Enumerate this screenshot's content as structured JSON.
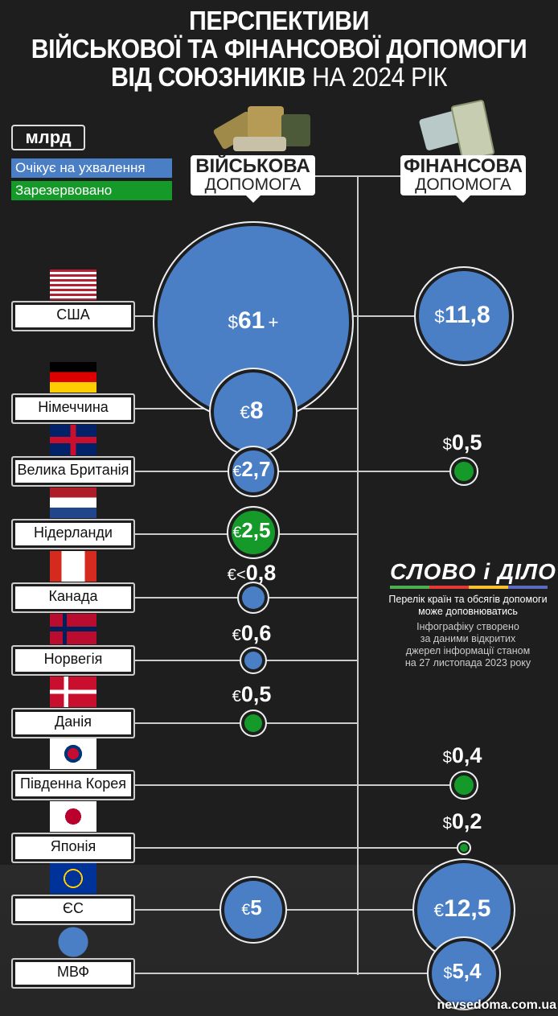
{
  "title": {
    "line1": "ПЕРСПЕКТИВИ",
    "line2": "ВІЙСЬКОВОЇ ТА ФІНАНСОВОЇ ДОПОМОГИ",
    "line3_bold": "ВІД СОЮЗНИКІВ",
    "line3_thin": "НА 2024 РІК"
  },
  "legend": {
    "unit": "млрд",
    "pending": "Очікує на ухвалення",
    "reserved": "Зарезервовано"
  },
  "colors": {
    "pending": "#4a7fc6",
    "reserved": "#159a2a",
    "background": "#1e1e1e"
  },
  "headers": {
    "military_1": "ВІЙСЬКОВА",
    "military_2": "ДОПОМОГА",
    "financial_1": "ФІНАНСОВА",
    "financial_2": "ДОПОМОГА"
  },
  "countries": [
    "США",
    "Німеччина",
    "Велика Британія",
    "Нідерланди",
    "Канада",
    "Норвегія",
    "Данія",
    "Південна Корея",
    "Японія",
    "ЄС",
    "МВФ"
  ],
  "chart_data": {
    "type": "scatter",
    "unit": "млрд",
    "categories": [
      "США",
      "Німеччина",
      "Велика Британія",
      "Нідерланди",
      "Канада",
      "Норвегія",
      "Данія",
      "Південна Корея",
      "Японія",
      "ЄС",
      "МВФ"
    ],
    "series": [
      {
        "name": "ВІЙСЬКОВА ДОПОМОГА",
        "points": [
          {
            "country": "США",
            "value": 61,
            "prefix": "$",
            "label": "61",
            "suffix": "+",
            "status": "pending"
          },
          {
            "country": "Німеччина",
            "value": 8,
            "prefix": "€",
            "label": "8",
            "suffix": "",
            "status": "pending"
          },
          {
            "country": "Велика Британія",
            "value": 2.7,
            "prefix": "€",
            "label": "2,7",
            "suffix": "",
            "status": "pending"
          },
          {
            "country": "Нідерланди",
            "value": 2.5,
            "prefix": "€",
            "label": "2,5",
            "suffix": "",
            "status": "reserved"
          },
          {
            "country": "Канада",
            "value": 0.8,
            "prefix": "€<",
            "label": "0,8",
            "suffix": "",
            "status": "pending"
          },
          {
            "country": "Норвегія",
            "value": 0.6,
            "prefix": "€",
            "label": "0,6",
            "suffix": "",
            "status": "pending"
          },
          {
            "country": "Данія",
            "value": 0.5,
            "prefix": "€",
            "label": "0,5",
            "suffix": "",
            "status": "reserved"
          },
          {
            "country": "ЄС",
            "value": 5,
            "prefix": "€",
            "label": "5",
            "suffix": "",
            "status": "pending"
          }
        ]
      },
      {
        "name": "ФІНАНСОВА ДОПОМОГА",
        "points": [
          {
            "country": "США",
            "value": 11.8,
            "prefix": "$",
            "label": "11,8",
            "suffix": "",
            "status": "pending"
          },
          {
            "country": "Велика Британія",
            "value": 0.5,
            "prefix": "$",
            "label": "0,5",
            "suffix": "",
            "status": "reserved"
          },
          {
            "country": "Південна Корея",
            "value": 0.4,
            "prefix": "$",
            "label": "0,4",
            "suffix": "",
            "status": "reserved"
          },
          {
            "country": "Японія",
            "value": 0.2,
            "prefix": "$",
            "label": "0,2",
            "suffix": "",
            "status": "reserved"
          },
          {
            "country": "ЄС",
            "value": 12.5,
            "prefix": "€",
            "label": "12,5",
            "suffix": "",
            "status": "pending"
          },
          {
            "country": "МВФ",
            "value": 5.4,
            "prefix": "$",
            "label": "5,4",
            "suffix": "",
            "status": "pending"
          }
        ]
      }
    ]
  },
  "logo": "СЛОВО і ДІЛО",
  "notes": {
    "line1": "Перелік країн та обсягів допомоги",
    "line2": "може доповнюватись",
    "line3": "Інфографіку створено",
    "line4": "за даними відкритих",
    "line5": "джерел інформації станом",
    "line6": "на 27 листопада 2023 року"
  },
  "watermark": "nevsedoma.com.ua"
}
